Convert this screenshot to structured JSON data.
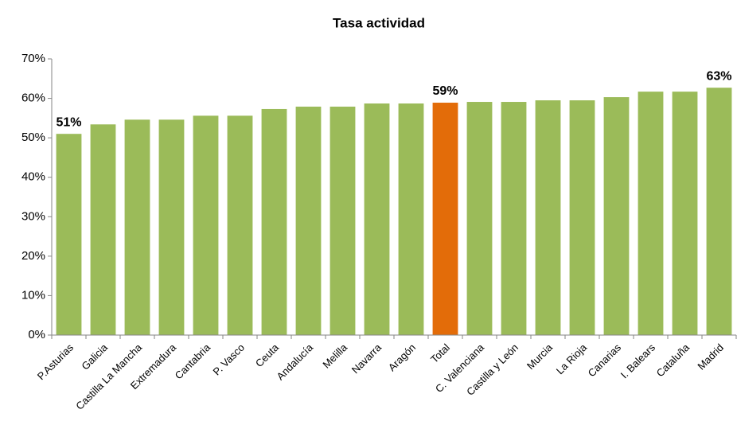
{
  "chart_data": {
    "type": "bar",
    "title": "Tasa actividad",
    "categories": [
      "P.Asturias",
      "Galicia",
      "Castilla La Mancha",
      "Extremadura",
      "Cantabria",
      "P. Vasco",
      "Ceuta",
      "Andalucía",
      "Melilla",
      "Navarra",
      "Aragón",
      "Total",
      "C. Valenciana",
      "Castilla y León",
      "Murcia",
      "La Rioja",
      "Canarias",
      "I. Balears",
      "Cataluña",
      "Madrid"
    ],
    "values": [
      51.0,
      53.4,
      54.6,
      54.6,
      55.6,
      55.6,
      57.3,
      57.9,
      57.9,
      58.7,
      58.7,
      58.9,
      59.1,
      59.1,
      59.5,
      59.5,
      60.3,
      61.7,
      61.7,
      62.7
    ],
    "value_labels": [
      "51%",
      null,
      null,
      null,
      null,
      null,
      null,
      null,
      null,
      null,
      null,
      "59%",
      null,
      null,
      null,
      null,
      null,
      null,
      null,
      "63%"
    ],
    "colors": [
      "#9bbb59",
      "#9bbb59",
      "#9bbb59",
      "#9bbb59",
      "#9bbb59",
      "#9bbb59",
      "#9bbb59",
      "#9bbb59",
      "#9bbb59",
      "#9bbb59",
      "#9bbb59",
      "#e36c09",
      "#9bbb59",
      "#9bbb59",
      "#9bbb59",
      "#9bbb59",
      "#9bbb59",
      "#9bbb59",
      "#9bbb59",
      "#9bbb59"
    ],
    "ylim": [
      0,
      70
    ],
    "yticks": [
      {
        "value": 0,
        "label": "0%"
      },
      {
        "value": 10,
        "label": "10%"
      },
      {
        "value": 20,
        "label": "20%"
      },
      {
        "value": 30,
        "label": "30%"
      },
      {
        "value": 40,
        "label": "40%"
      },
      {
        "value": 50,
        "label": "50%"
      },
      {
        "value": 60,
        "label": "60%"
      },
      {
        "value": 70,
        "label": "70%"
      }
    ],
    "grid": false
  }
}
